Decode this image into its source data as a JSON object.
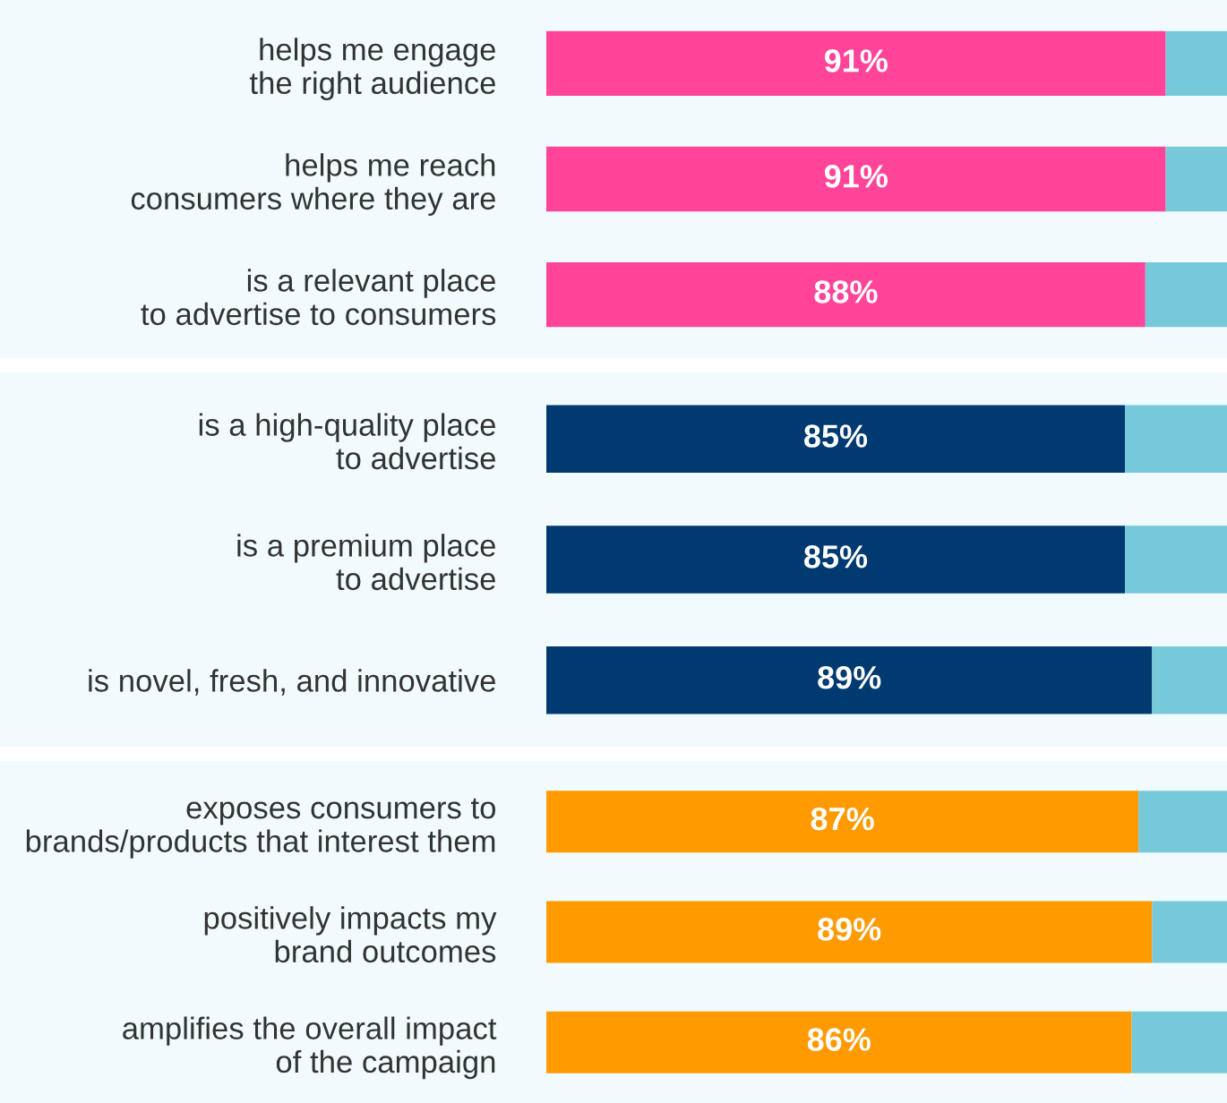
{
  "chart_data": [
    {
      "type": "bar",
      "orientation": "horizontal",
      "stacked": true,
      "categories": [
        "helps me engage\nthe right audience",
        "helps me reach\nconsumers where they are",
        "is a relevant place\nto advertise to consumers"
      ],
      "series": [
        {
          "color": "#ff4499",
          "values": [
            91,
            91,
            88
          ],
          "value_labels": [
            "91%",
            "91%",
            "88%"
          ]
        },
        {
          "color": "#76c9d9",
          "values": [
            9,
            9,
            12
          ]
        }
      ],
      "xlim": [
        0,
        100
      ],
      "tick_labels": "y"
    },
    {
      "type": "bar",
      "orientation": "horizontal",
      "stacked": true,
      "categories": [
        "is a high-quality place\nto advertise",
        "is a premium place\nto advertise",
        "is novel, fresh, and innovative"
      ],
      "series": [
        {
          "color": "#003a70",
          "values": [
            85,
            85,
            89
          ],
          "value_labels": [
            "85%",
            "85%",
            "89%"
          ]
        },
        {
          "color": "#76c9d9",
          "values": [
            15,
            15,
            11
          ]
        }
      ],
      "xlim": [
        0,
        100
      ],
      "tick_labels": "y"
    },
    {
      "type": "bar",
      "orientation": "horizontal",
      "stacked": true,
      "categories": [
        "exposes consumers to\nbrands/products that interest them",
        "positively impacts my\nbrand outcomes",
        "amplifies the overall impact\nof the campaign"
      ],
      "series": [
        {
          "color": "#ff9a00",
          "values": [
            87,
            89,
            86
          ],
          "value_labels": [
            "87%",
            "89%",
            "86%"
          ]
        },
        {
          "color": "#76c9d9",
          "values": [
            13,
            11,
            14
          ]
        }
      ],
      "xlim": [
        0,
        100
      ],
      "tick_labels": "y"
    }
  ]
}
